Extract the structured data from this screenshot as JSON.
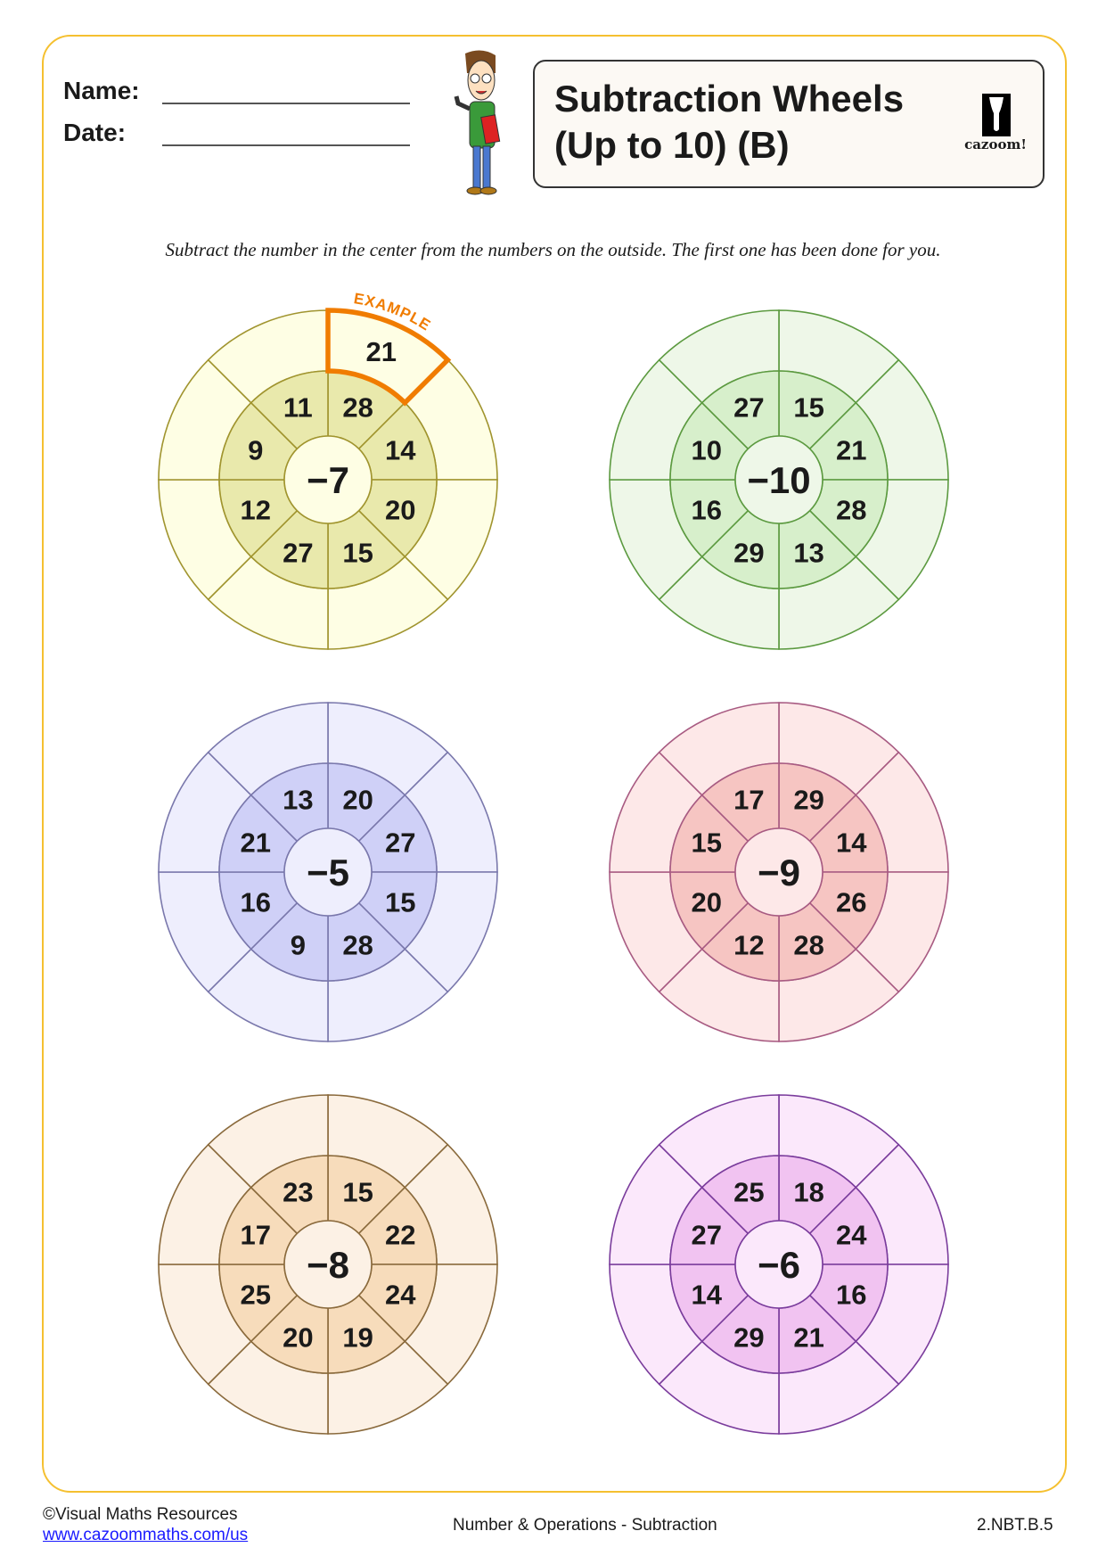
{
  "header": {
    "name_label": "Name:",
    "date_label": "Date:",
    "title_line1": "Subtraction Wheels",
    "title_line2": "(Up to 10) (B)",
    "logo_text": "cazoom!"
  },
  "instruction": "Subtract the number in the center from the numbers on the outside. The first one has been done for you.",
  "example_label": "EXAMPLE",
  "wheels": [
    {
      "center": "−7",
      "inner": [
        "28",
        "14",
        "20",
        "15",
        "27",
        "12",
        "9",
        "11"
      ],
      "outer_answers": [
        "21",
        "",
        "",
        "",
        "",
        "",
        "",
        ""
      ],
      "colors": {
        "outer": "#fefee4",
        "inner": "#e9e9ac",
        "core": "#fefee4",
        "stroke": "#a0942e"
      },
      "example": true
    },
    {
      "center": "−10",
      "inner": [
        "15",
        "21",
        "28",
        "13",
        "29",
        "16",
        "10",
        "27"
      ],
      "outer_answers": [
        "",
        "",
        "",
        "",
        "",
        "",
        "",
        ""
      ],
      "colors": {
        "outer": "#eef7e8",
        "inner": "#d7efcb",
        "core": "#eef7e8",
        "stroke": "#5c9a40"
      }
    },
    {
      "center": "−5",
      "inner": [
        "20",
        "27",
        "15",
        "28",
        "9",
        "16",
        "21",
        "13"
      ],
      "outer_answers": [
        "",
        "",
        "",
        "",
        "",
        "",
        "",
        ""
      ],
      "colors": {
        "outer": "#eeeefd",
        "inner": "#cfd0f7",
        "core": "#eeeefd",
        "stroke": "#7a78ac"
      }
    },
    {
      "center": "−9",
      "inner": [
        "29",
        "14",
        "26",
        "28",
        "12",
        "20",
        "15",
        "17"
      ],
      "outer_answers": [
        "",
        "",
        "",
        "",
        "",
        "",
        "",
        ""
      ],
      "colors": {
        "outer": "#fde8e8",
        "inner": "#f6c5c2",
        "core": "#fde8e8",
        "stroke": "#a85b82"
      }
    },
    {
      "center": "−8",
      "inner": [
        "15",
        "22",
        "24",
        "19",
        "20",
        "25",
        "17",
        "23"
      ],
      "outer_answers": [
        "",
        "",
        "",
        "",
        "",
        "",
        "",
        ""
      ],
      "colors": {
        "outer": "#fcf1e5",
        "inner": "#f7dcbb",
        "core": "#fcf1e5",
        "stroke": "#8a6a3c"
      }
    },
    {
      "center": "−6",
      "inner": [
        "18",
        "24",
        "16",
        "21",
        "29",
        "14",
        "27",
        "25"
      ],
      "outer_answers": [
        "",
        "",
        "",
        "",
        "",
        "",
        "",
        ""
      ],
      "colors": {
        "outer": "#fbe8fb",
        "inner": "#f1c3f1",
        "core": "#fbe8fb",
        "stroke": "#7a3c9c"
      }
    }
  ],
  "accent_color": "#f07c00",
  "footer": {
    "copyright": "©Visual Maths Resources",
    "url": "www.cazoommaths.com/us",
    "topic": "Number & Operations - Subtraction",
    "standard": "2.NBT.B.5"
  }
}
